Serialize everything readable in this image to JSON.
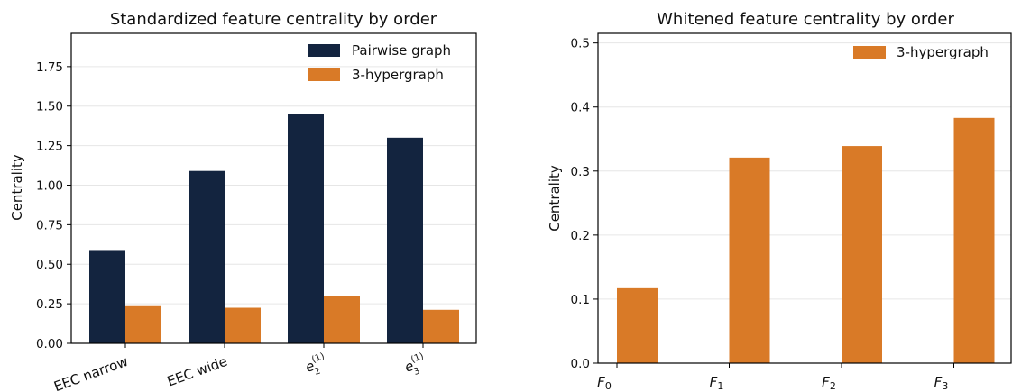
{
  "chart_data": [
    {
      "type": "bar",
      "title": "Standardized feature centrality by order",
      "xlabel": "",
      "ylabel": "Centrality",
      "categories": [
        "EEC narrow",
        "EEC wide",
        "e2(1)",
        "e3(1)"
      ],
      "series": [
        {
          "name": "Pairwise graph",
          "color": "#13243f",
          "values": [
            0.59,
            1.09,
            1.45,
            1.3
          ]
        },
        {
          "name": "3-hypergraph",
          "color": "#d97a27",
          "values": [
            0.235,
            0.225,
            0.297,
            0.212
          ]
        }
      ],
      "ylim": [
        0,
        1.96
      ],
      "yticks": [
        "0.00",
        "0.25",
        "0.50",
        "0.75",
        "1.00",
        "1.25",
        "1.50",
        "1.75"
      ],
      "grid": "horizontal",
      "legend_position": "top-right"
    },
    {
      "type": "bar",
      "title": "Whitened feature centrality by order",
      "xlabel": "",
      "ylabel": "Centrality",
      "categories": [
        "F0",
        "F1",
        "F2",
        "F3"
      ],
      "series": [
        {
          "name": "3-hypergraph",
          "color": "#d97a27",
          "values": [
            0.117,
            0.321,
            0.339,
            0.383
          ]
        }
      ],
      "ylim": [
        0,
        0.515
      ],
      "yticks": [
        "0.0",
        "0.1",
        "0.2",
        "0.3",
        "0.4",
        "0.5"
      ],
      "grid": "horizontal",
      "legend_position": "top-right"
    }
  ]
}
